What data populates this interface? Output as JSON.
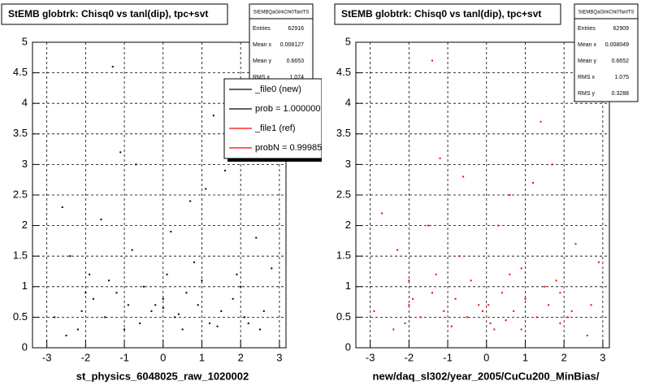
{
  "chart_data": [
    {
      "type": "scatter",
      "title": "StEMB globtrk: Chisq0 vs tanl(dip), tpc+svt",
      "xlabel": "st_physics_6048025_raw_1020002",
      "color": "#000000",
      "xlim": [
        -3.37,
        3.17
      ],
      "ylim": [
        0,
        5
      ],
      "xticks": [
        -3,
        -2,
        -1,
        0,
        1,
        2,
        3
      ],
      "yticks": [
        0,
        0.5,
        1,
        1.5,
        2,
        2.5,
        3,
        3.5,
        4,
        4.5,
        5
      ],
      "grid": true,
      "x": [
        -2.1,
        -1.8,
        -1.5,
        -1.2,
        -0.9,
        -0.6,
        -0.3,
        0,
        0.3,
        0.6,
        0.9,
        1.2,
        1.5,
        1.8,
        2.1,
        -1.9,
        -1.4,
        -1.0,
        -0.5,
        0.1,
        0.5,
        1.0,
        1.4,
        1.9,
        -2.4,
        2.4,
        -2.6,
        2.6,
        -2.2,
        2.2,
        -1.6,
        -0.8,
        0.2,
        0.8,
        1.6,
        -1.1,
        1.1,
        -0.2,
        0.4,
        -2.8,
        2.8,
        -1.3,
        1.3,
        0.7,
        -0.7,
        -2.0,
        2.0,
        -2.5,
        2.5,
        0
      ],
      "y": [
        0.6,
        0.8,
        0.5,
        0.9,
        0.7,
        0.4,
        0.6,
        0.8,
        0.5,
        0.9,
        0.7,
        0.4,
        0.6,
        0.8,
        0.5,
        1.2,
        1.1,
        0.3,
        1.0,
        1.2,
        0.3,
        1.1,
        0.35,
        1.2,
        1.5,
        1.8,
        2.3,
        0.6,
        0.3,
        0.4,
        2.1,
        1.6,
        1.9,
        1.4,
        2.9,
        3.2,
        2.6,
        0.7,
        0.55,
        0.5,
        1.3,
        4.6,
        3.8,
        2.4,
        3.0,
        0.9,
        1.0,
        0.2,
        0.3,
        0.65
      ],
      "stats": {
        "title": "StEMBQaGlrkChi0TanlTS",
        "rows": [
          {
            "label": "Entries",
            "value": 62916
          },
          {
            "label": "Mean x",
            "value": 0.008127
          },
          {
            "label": "Mean y",
            "value": 0.6653
          },
          {
            "label": "RMS x",
            "value": 1.074
          }
        ]
      },
      "legend": [
        {
          "label": "_file0 (new)",
          "color": "#000000"
        },
        {
          "label": "prob = 1.000000",
          "color": "#000000"
        },
        {
          "label": "_file1 (ref)",
          "color": "#ff0000"
        },
        {
          "label": "probN = 0.99985",
          "color": "#ff0000"
        }
      ]
    },
    {
      "type": "scatter",
      "title": "StEMB globtrk: Chisq0 vs tanl(dip), tpc+svt",
      "xlabel": "new/daq_sl302/year_2005/CuCu200_MinBias/",
      "color": "#ff0000",
      "xlim": [
        -3.37,
        3.17
      ],
      "ylim": [
        0,
        5
      ],
      "xticks": [
        -3,
        -2,
        -1,
        0,
        1,
        2,
        3
      ],
      "yticks": [
        0,
        0.5,
        1,
        1.5,
        2,
        2.5,
        3,
        3.5,
        4,
        4.5,
        5
      ],
      "grid": true,
      "x": [
        -2.0,
        -1.7,
        -1.4,
        -1.1,
        -0.8,
        -0.5,
        -0.2,
        0.1,
        0.4,
        0.7,
        1.0,
        1.3,
        1.6,
        1.9,
        2.2,
        -2.0,
        -1.3,
        -0.9,
        -0.4,
        0.2,
        0.6,
        0.9,
        1.5,
        1.8,
        -2.3,
        2.3,
        -2.7,
        2.7,
        -2.1,
        2.1,
        -1.5,
        -0.7,
        0.3,
        0.9,
        1.7,
        -1.2,
        1.2,
        -0.1,
        0.5,
        -2.9,
        2.9,
        -1.4,
        1.4,
        0.6,
        -0.6,
        -1.9,
        1.9,
        -2.4,
        2.6,
        0.05
      ],
      "y": [
        0.7,
        0.5,
        0.9,
        0.6,
        0.8,
        0.5,
        0.7,
        0.4,
        0.9,
        0.6,
        0.8,
        0.5,
        0.7,
        0.4,
        0.6,
        1.1,
        1.2,
        0.35,
        1.1,
        0.3,
        1.2,
        0.3,
        1.0,
        1.1,
        1.6,
        1.7,
        2.2,
        0.7,
        0.4,
        0.5,
        2.0,
        1.5,
        2.0,
        1.3,
        3.0,
        3.1,
        2.7,
        0.6,
        0.45,
        0.6,
        1.4,
        4.7,
        3.7,
        2.5,
        2.8,
        0.8,
        0.9,
        0.3,
        0.2,
        0.7
      ],
      "stats": {
        "title": "StEMBQaGlrkChi0TanlTS",
        "rows": [
          {
            "label": "Entries",
            "value": 62909
          },
          {
            "label": "Mean x",
            "value": 0.008049
          },
          {
            "label": "Mean y",
            "value": 0.6652
          },
          {
            "label": "RMS x",
            "value": 1.075
          },
          {
            "label": "RMS y",
            "value": 0.3288
          }
        ]
      }
    }
  ]
}
